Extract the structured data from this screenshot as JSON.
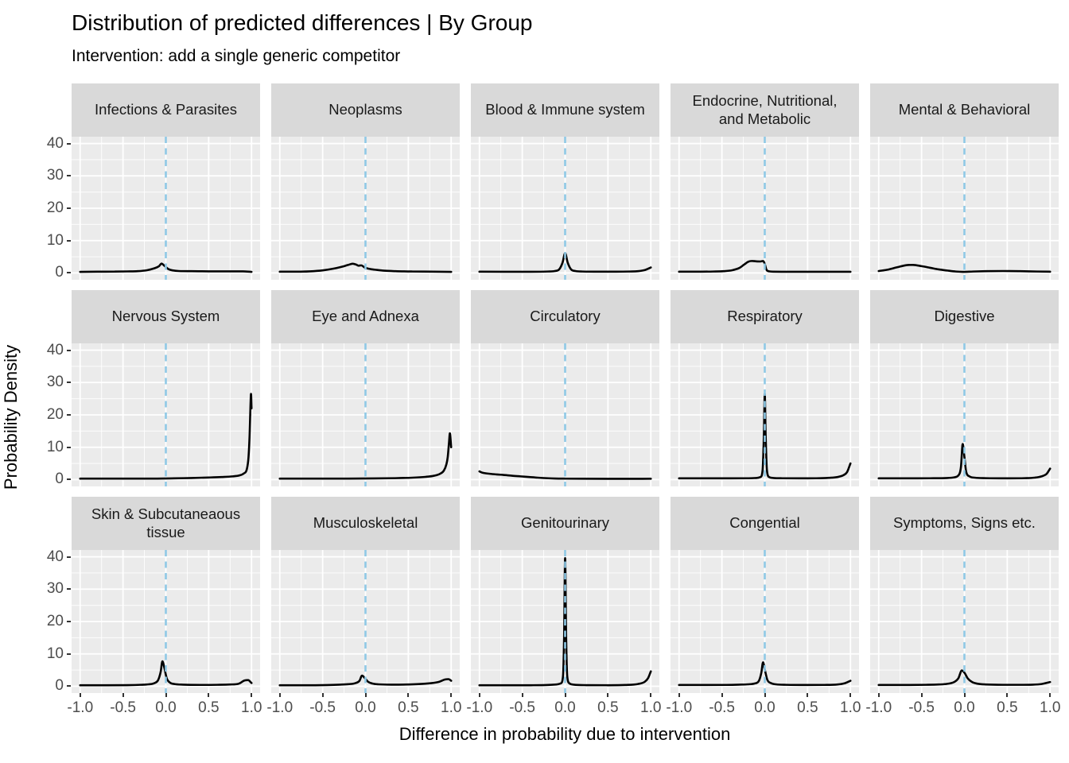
{
  "title": "Distribution of predicted differences | By Group",
  "subtitle": "Intervention: add a single generic competitor",
  "chart_data": {
    "type": "line",
    "variant": "faceted density curves (3 rows x 5 columns)",
    "title": "Distribution of predicted differences | By Group",
    "subtitle": "Intervention: add a single generic competitor",
    "xlabel": "Difference in probability due to intervention",
    "ylabel": "Probability Density",
    "xlim": [
      -1.1,
      1.1
    ],
    "ylim": [
      -2.1,
      42.1
    ],
    "x_ticks": [
      -1.0,
      -0.5,
      0.0,
      0.5,
      1.0
    ],
    "x_tick_labels": [
      "-1.0",
      "-0.5",
      "0.0",
      "0.5",
      "1.0"
    ],
    "x_minor_ticks": [
      -0.75,
      -0.25,
      0.25,
      0.75
    ],
    "y_ticks": [
      0,
      10,
      20,
      30,
      40
    ],
    "y_tick_labels": [
      "0",
      "10",
      "20",
      "30",
      "40"
    ],
    "y_minor_ticks": [
      5,
      15,
      25,
      35
    ],
    "grid": "white major and minor gridlines on gray panel",
    "legend": "none",
    "reference_line": {
      "x": 0,
      "style": "dashed",
      "color": "#8FC9E6"
    },
    "colors": {
      "panel_bg": "#EBEBEB",
      "strip_bg": "#D9D9D9",
      "gridline": "#FFFFFF",
      "curve": "#000000",
      "ref_line": "#8FC9E6",
      "tick_label": "#4D4D4D",
      "tick_mark": "#333333",
      "text": "#000000"
    },
    "facets": [
      {
        "label": "Infections & Parasites",
        "points": [
          [
            -1,
            0.35
          ],
          [
            -0.8,
            0.4
          ],
          [
            -0.6,
            0.42
          ],
          [
            -0.45,
            0.48
          ],
          [
            -0.33,
            0.55
          ],
          [
            -0.22,
            0.85
          ],
          [
            -0.14,
            1.4
          ],
          [
            -0.08,
            2.1
          ],
          [
            -0.05,
            2.9
          ],
          [
            -0.02,
            2.3
          ],
          [
            0.03,
            1.2
          ],
          [
            0.08,
            0.8
          ],
          [
            0.15,
            0.6
          ],
          [
            0.3,
            0.55
          ],
          [
            0.5,
            0.5
          ],
          [
            0.7,
            0.5
          ],
          [
            0.9,
            0.5
          ],
          [
            1,
            0.35
          ]
        ]
      },
      {
        "label": "Neoplasms",
        "points": [
          [
            -1,
            0.4
          ],
          [
            -0.8,
            0.4
          ],
          [
            -0.65,
            0.5
          ],
          [
            -0.5,
            0.8
          ],
          [
            -0.38,
            1.3
          ],
          [
            -0.28,
            1.9
          ],
          [
            -0.2,
            2.5
          ],
          [
            -0.15,
            2.85
          ],
          [
            -0.11,
            2.6
          ],
          [
            -0.08,
            2.25
          ],
          [
            -0.05,
            2.35
          ],
          [
            -0.01,
            1.7
          ],
          [
            0.06,
            1.2
          ],
          [
            0.13,
            0.95
          ],
          [
            0.22,
            0.7
          ],
          [
            0.35,
            0.55
          ],
          [
            0.55,
            0.45
          ],
          [
            0.8,
            0.4
          ],
          [
            1,
            0.35
          ]
        ]
      },
      {
        "label": "Blood & Immune system",
        "points": [
          [
            -1,
            0.4
          ],
          [
            -0.7,
            0.38
          ],
          [
            -0.4,
            0.38
          ],
          [
            -0.2,
            0.45
          ],
          [
            -0.12,
            0.6
          ],
          [
            -0.07,
            1.1
          ],
          [
            -0.03,
            3.2
          ],
          [
            0,
            6.1
          ],
          [
            0.03,
            3.2
          ],
          [
            0.07,
            1.1
          ],
          [
            0.12,
            0.6
          ],
          [
            0.2,
            0.45
          ],
          [
            0.4,
            0.4
          ],
          [
            0.6,
            0.4
          ],
          [
            0.75,
            0.45
          ],
          [
            0.85,
            0.55
          ],
          [
            0.93,
            0.9
          ],
          [
            1,
            1.7
          ]
        ]
      },
      {
        "label": "Endocrine, Nutritional,\nand Metabolic",
        "points": [
          [
            -1,
            0.4
          ],
          [
            -0.8,
            0.4
          ],
          [
            -0.6,
            0.45
          ],
          [
            -0.48,
            0.55
          ],
          [
            -0.38,
            0.85
          ],
          [
            -0.3,
            1.5
          ],
          [
            -0.24,
            2.6
          ],
          [
            -0.19,
            3.5
          ],
          [
            -0.15,
            3.7
          ],
          [
            -0.1,
            3.6
          ],
          [
            -0.05,
            3.55
          ],
          [
            -0.02,
            3.7
          ],
          [
            0,
            2.8
          ],
          [
            0.02,
            1.0
          ],
          [
            0.05,
            0.5
          ],
          [
            0.1,
            0.4
          ],
          [
            0.3,
            0.38
          ],
          [
            0.6,
            0.38
          ],
          [
            1,
            0.38
          ]
        ]
      },
      {
        "label": "Mental & Behavioral",
        "points": [
          [
            -1,
            0.6
          ],
          [
            -0.9,
            1.0
          ],
          [
            -0.78,
            1.8
          ],
          [
            -0.68,
            2.4
          ],
          [
            -0.6,
            2.5
          ],
          [
            -0.5,
            2.1
          ],
          [
            -0.4,
            1.6
          ],
          [
            -0.3,
            1.1
          ],
          [
            -0.2,
            0.75
          ],
          [
            -0.1,
            0.45
          ],
          [
            -0.02,
            0.35
          ],
          [
            0.1,
            0.45
          ],
          [
            0.25,
            0.55
          ],
          [
            0.45,
            0.6
          ],
          [
            0.65,
            0.55
          ],
          [
            0.85,
            0.45
          ],
          [
            1,
            0.4
          ]
        ]
      },
      {
        "label": "Nervous System",
        "points": [
          [
            -1,
            0.3
          ],
          [
            -0.7,
            0.3
          ],
          [
            -0.4,
            0.3
          ],
          [
            -0.1,
            0.32
          ],
          [
            0.1,
            0.4
          ],
          [
            0.3,
            0.5
          ],
          [
            0.5,
            0.65
          ],
          [
            0.65,
            0.8
          ],
          [
            0.78,
            1.0
          ],
          [
            0.86,
            1.3
          ],
          [
            0.91,
            1.9
          ],
          [
            0.945,
            3.2
          ],
          [
            0.965,
            7
          ],
          [
            0.978,
            14
          ],
          [
            0.988,
            23
          ],
          [
            0.994,
            26.5
          ],
          [
            1,
            22
          ]
        ]
      },
      {
        "label": "Eye and Adnexa",
        "points": [
          [
            -1,
            0.3
          ],
          [
            -0.6,
            0.3
          ],
          [
            -0.2,
            0.32
          ],
          [
            0.1,
            0.38
          ],
          [
            0.35,
            0.45
          ],
          [
            0.55,
            0.6
          ],
          [
            0.7,
            0.85
          ],
          [
            0.8,
            1.2
          ],
          [
            0.87,
            1.8
          ],
          [
            0.915,
            2.8
          ],
          [
            0.945,
            4.8
          ],
          [
            0.96,
            7
          ],
          [
            0.975,
            11.5
          ],
          [
            0.985,
            14.3
          ],
          [
            1,
            10
          ]
        ]
      },
      {
        "label": "Circulatory",
        "points": [
          [
            -1,
            2.55
          ],
          [
            -0.985,
            2.35
          ],
          [
            -0.96,
            2.1
          ],
          [
            -0.88,
            1.8
          ],
          [
            -0.8,
            1.6
          ],
          [
            -0.72,
            1.45
          ],
          [
            -0.62,
            1.2
          ],
          [
            -0.52,
            1.0
          ],
          [
            -0.42,
            0.8
          ],
          [
            -0.32,
            0.6
          ],
          [
            -0.22,
            0.45
          ],
          [
            -0.12,
            0.35
          ],
          [
            0,
            0.3
          ],
          [
            0.2,
            0.27
          ],
          [
            0.5,
            0.25
          ],
          [
            0.8,
            0.25
          ],
          [
            1,
            0.27
          ]
        ]
      },
      {
        "label": "Respiratory",
        "points": [
          [
            -1,
            0.4
          ],
          [
            -0.7,
            0.4
          ],
          [
            -0.4,
            0.4
          ],
          [
            -0.2,
            0.42
          ],
          [
            -0.1,
            0.5
          ],
          [
            -0.05,
            0.8
          ],
          [
            -0.025,
            3
          ],
          [
            -0.01,
            14
          ],
          [
            0,
            26.5
          ],
          [
            0.01,
            14
          ],
          [
            0.025,
            3
          ],
          [
            0.05,
            0.8
          ],
          [
            0.1,
            0.5
          ],
          [
            0.2,
            0.42
          ],
          [
            0.4,
            0.4
          ],
          [
            0.6,
            0.42
          ],
          [
            0.75,
            0.55
          ],
          [
            0.85,
            0.8
          ],
          [
            0.92,
            1.4
          ],
          [
            0.96,
            2.3
          ],
          [
            1,
            5
          ]
        ]
      },
      {
        "label": "Digestive",
        "points": [
          [
            -1,
            0.4
          ],
          [
            -0.7,
            0.4
          ],
          [
            -0.4,
            0.42
          ],
          [
            -0.2,
            0.5
          ],
          [
            -0.12,
            0.7
          ],
          [
            -0.07,
            1.3
          ],
          [
            -0.04,
            4
          ],
          [
            -0.02,
            11
          ],
          [
            0,
            7
          ],
          [
            0.02,
            2.5
          ],
          [
            0.06,
            1.0
          ],
          [
            0.12,
            0.6
          ],
          [
            0.25,
            0.45
          ],
          [
            0.5,
            0.4
          ],
          [
            0.7,
            0.45
          ],
          [
            0.82,
            0.6
          ],
          [
            0.9,
            1.0
          ],
          [
            0.96,
            1.8
          ],
          [
            1,
            3.4
          ]
        ]
      },
      {
        "label": "Skin & Subcutaneaous\ntissue",
        "points": [
          [
            -1,
            0.3
          ],
          [
            -0.7,
            0.3
          ],
          [
            -0.45,
            0.35
          ],
          [
            -0.3,
            0.45
          ],
          [
            -0.2,
            0.6
          ],
          [
            -0.13,
            1.0
          ],
          [
            -0.09,
            1.9
          ],
          [
            -0.06,
            4.5
          ],
          [
            -0.04,
            7.7
          ],
          [
            -0.02,
            6.0
          ],
          [
            0.01,
            2.5
          ],
          [
            0.05,
            1.1
          ],
          [
            0.1,
            0.7
          ],
          [
            0.2,
            0.5
          ],
          [
            0.4,
            0.42
          ],
          [
            0.6,
            0.45
          ],
          [
            0.75,
            0.55
          ],
          [
            0.85,
            0.8
          ],
          [
            0.92,
            1.8
          ],
          [
            0.96,
            1.9
          ],
          [
            1,
            1.0
          ]
        ]
      },
      {
        "label": "Musculoskeletal",
        "points": [
          [
            -1,
            0.3
          ],
          [
            -0.7,
            0.3
          ],
          [
            -0.45,
            0.38
          ],
          [
            -0.3,
            0.5
          ],
          [
            -0.2,
            0.65
          ],
          [
            -0.12,
            0.95
          ],
          [
            -0.07,
            1.7
          ],
          [
            -0.04,
            3.3
          ],
          [
            -0.01,
            2.6
          ],
          [
            0.03,
            1.4
          ],
          [
            0.08,
            0.85
          ],
          [
            0.15,
            0.6
          ],
          [
            0.3,
            0.5
          ],
          [
            0.5,
            0.55
          ],
          [
            0.7,
            0.8
          ],
          [
            0.85,
            1.3
          ],
          [
            0.93,
            2.1
          ],
          [
            0.97,
            2.2
          ],
          [
            1,
            1.7
          ]
        ]
      },
      {
        "label": "Genitourinary",
        "points": [
          [
            -1,
            0.3
          ],
          [
            -0.7,
            0.3
          ],
          [
            -0.4,
            0.32
          ],
          [
            -0.2,
            0.4
          ],
          [
            -0.1,
            0.55
          ],
          [
            -0.05,
            0.9
          ],
          [
            -0.025,
            3
          ],
          [
            -0.012,
            15
          ],
          [
            0,
            39.6
          ],
          [
            0.012,
            15
          ],
          [
            0.025,
            3
          ],
          [
            0.05,
            0.9
          ],
          [
            0.1,
            0.5
          ],
          [
            0.25,
            0.35
          ],
          [
            0.5,
            0.32
          ],
          [
            0.7,
            0.4
          ],
          [
            0.85,
            0.7
          ],
          [
            0.93,
            1.4
          ],
          [
            0.97,
            2.6
          ],
          [
            1,
            4.6
          ]
        ]
      },
      {
        "label": "Congential",
        "points": [
          [
            -1,
            0.4
          ],
          [
            -0.7,
            0.4
          ],
          [
            -0.45,
            0.42
          ],
          [
            -0.3,
            0.5
          ],
          [
            -0.2,
            0.6
          ],
          [
            -0.12,
            0.85
          ],
          [
            -0.07,
            1.6
          ],
          [
            -0.04,
            4.2
          ],
          [
            -0.02,
            7.4
          ],
          [
            0,
            5.2
          ],
          [
            0.03,
            2.0
          ],
          [
            0.07,
            1.0
          ],
          [
            0.13,
            0.6
          ],
          [
            0.25,
            0.45
          ],
          [
            0.5,
            0.4
          ],
          [
            0.7,
            0.42
          ],
          [
            0.85,
            0.55
          ],
          [
            0.93,
            0.9
          ],
          [
            1,
            1.7
          ]
        ]
      },
      {
        "label": "Symptoms, Signs etc.",
        "points": [
          [
            -1,
            0.4
          ],
          [
            -0.7,
            0.4
          ],
          [
            -0.45,
            0.45
          ],
          [
            -0.3,
            0.55
          ],
          [
            -0.2,
            0.75
          ],
          [
            -0.12,
            1.3
          ],
          [
            -0.07,
            2.5
          ],
          [
            -0.03,
            4.9
          ],
          [
            0,
            4.2
          ],
          [
            0.04,
            2.4
          ],
          [
            0.09,
            1.3
          ],
          [
            0.15,
            0.8
          ],
          [
            0.25,
            0.55
          ],
          [
            0.45,
            0.45
          ],
          [
            0.65,
            0.45
          ],
          [
            0.8,
            0.5
          ],
          [
            0.9,
            0.7
          ],
          [
            1,
            1.3
          ]
        ]
      }
    ]
  }
}
